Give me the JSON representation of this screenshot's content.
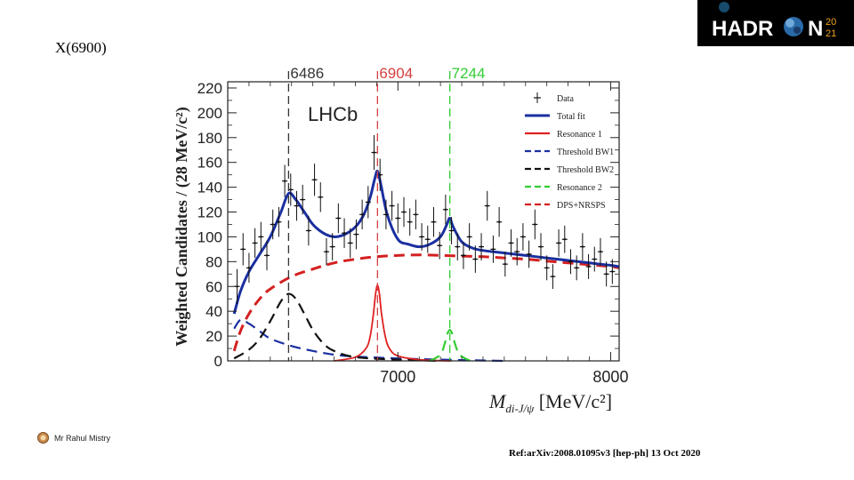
{
  "slide": {
    "title": "X(6900)",
    "author": "Mr Rahul Mistry",
    "reference": "Ref:arXiv:2008.01095v3 [hep-ph] 13 Oct 2020"
  },
  "logo": {
    "text_main": "HADR",
    "text_end": "N",
    "year_top": "20",
    "year_bottom": "21"
  },
  "colors": {
    "total_fit": "#1a2fa0",
    "resonance1": "#e02020",
    "threshold_bw1": "#1a2fa0",
    "threshold_bw2": "#111111",
    "resonance2": "#33cc33",
    "dps_nrsps": "#d42020",
    "marker_6486": "#333333",
    "marker_6904": "#d44040",
    "marker_7244": "#33cc33"
  },
  "chart_data": {
    "type": "line",
    "experiment_label": "LHCb",
    "xlabel_main": "M",
    "xlabel_sub": "di-J/ψ",
    "xlabel_units": " [MeV/c²]",
    "ylabel": "Weighted Candidates / (28 MeV/c²)",
    "xlim": [
      6200,
      8040
    ],
    "ylim": [
      0,
      225
    ],
    "xticks": [
      7000,
      8000
    ],
    "xtick_labels": [
      "7000",
      "8000"
    ],
    "yticks": [
      0,
      20,
      40,
      60,
      80,
      100,
      120,
      140,
      160,
      180,
      200,
      220
    ],
    "ytick_labels": [
      "0",
      "20",
      "40",
      "60",
      "80",
      "100",
      "120",
      "140",
      "160",
      "180",
      "200",
      "220"
    ],
    "markers": [
      {
        "mass": 6486,
        "label": "6486",
        "color_key": "marker_6486"
      },
      {
        "mass": 6904,
        "label": "6904",
        "color_key": "marker_6904"
      },
      {
        "mass": 7244,
        "label": "7244",
        "color_key": "marker_7244"
      }
    ],
    "legend": [
      {
        "label": "Data",
        "style": "data",
        "color_key": "threshold_bw2"
      },
      {
        "label": "Total fit",
        "style": "solid",
        "color_key": "total_fit"
      },
      {
        "label": "Resonance 1",
        "style": "solid-thin",
        "color_key": "resonance1"
      },
      {
        "label": "Threshold BW1",
        "style": "dashed",
        "color_key": "threshold_bw1"
      },
      {
        "label": "Threshold BW2",
        "style": "dashed",
        "color_key": "threshold_bw2"
      },
      {
        "label": "Resonance 2",
        "style": "dashed",
        "color_key": "resonance2"
      },
      {
        "label": "DPS+NRSPS",
        "style": "dashed",
        "color_key": "dps_nrsps"
      }
    ],
    "series": [
      {
        "name": "Total fit",
        "color_key": "total_fit",
        "style": "solid",
        "x": [
          6230,
          6260,
          6300,
          6350,
          6400,
          6450,
          6486,
          6520,
          6560,
          6600,
          6650,
          6700,
          6750,
          6800,
          6840,
          6870,
          6890,
          6904,
          6920,
          6950,
          7000,
          7050,
          7100,
          7150,
          7200,
          7230,
          7244,
          7260,
          7300,
          7350,
          7400,
          7500,
          7600,
          7700,
          7800,
          7900,
          8000,
          8040
        ],
        "y": [
          38,
          56,
          72,
          86,
          100,
          120,
          135,
          130,
          120,
          110,
          103,
          100,
          102,
          108,
          118,
          132,
          146,
          153,
          142,
          118,
          98,
          94,
          92,
          94,
          100,
          110,
          115,
          108,
          96,
          91,
          89,
          87,
          85,
          83,
          81,
          79,
          77,
          76
        ]
      },
      {
        "name": "Resonance 1",
        "color_key": "resonance1",
        "style": "solid-thin",
        "x": [
          6700,
          6800,
          6850,
          6870,
          6885,
          6895,
          6904,
          6913,
          6923,
          6940,
          6960,
          7000,
          7100,
          7250
        ],
        "y": [
          0,
          3,
          10,
          20,
          38,
          54,
          61,
          54,
          38,
          20,
          10,
          4,
          1,
          0
        ]
      },
      {
        "name": "Threshold BW1",
        "color_key": "threshold_bw1",
        "style": "dashed",
        "x": [
          6230,
          6260,
          6300,
          6350,
          6400,
          6500,
          6600,
          6700,
          6800,
          7000,
          7200,
          7500
        ],
        "y": [
          26,
          33,
          30,
          24,
          18,
          12,
          8,
          5,
          3.5,
          2,
          1,
          0
        ]
      },
      {
        "name": "Threshold BW2",
        "color_key": "threshold_bw2",
        "style": "dashed",
        "x": [
          6230,
          6300,
          6350,
          6400,
          6450,
          6486,
          6520,
          6560,
          6600,
          6650,
          6700,
          6800,
          7000,
          7200
        ],
        "y": [
          2,
          9,
          18,
          32,
          48,
          54,
          50,
          38,
          25,
          14,
          8,
          3,
          1,
          0
        ]
      },
      {
        "name": "Resonance 2",
        "color_key": "resonance2",
        "style": "dashed",
        "x": [
          7150,
          7200,
          7220,
          7233,
          7244,
          7255,
          7268,
          7290,
          7340
        ],
        "y": [
          0,
          5,
          14,
          22,
          25,
          22,
          14,
          5,
          0
        ]
      },
      {
        "name": "DPS+NRSPS",
        "color_key": "dps_nrsps",
        "style": "dashed",
        "x": [
          6230,
          6260,
          6300,
          6350,
          6400,
          6500,
          6600,
          6700,
          6800,
          6900,
          7000,
          7100,
          7200,
          7300,
          7400,
          7500,
          7600,
          7700,
          7800,
          7900,
          8000,
          8040
        ],
        "y": [
          8,
          24,
          38,
          50,
          58,
          68,
          74,
          79,
          82,
          84,
          85,
          85.5,
          85,
          84.5,
          84,
          83,
          82,
          80.5,
          79,
          77.5,
          76,
          75
        ]
      },
      {
        "name": "Data",
        "x": [
          6244,
          6272,
          6300,
          6328,
          6356,
          6384,
          6412,
          6440,
          6468,
          6496,
          6524,
          6552,
          6580,
          6608,
          6636,
          6664,
          6692,
          6720,
          6748,
          6776,
          6804,
          6832,
          6860,
          6888,
          6916,
          6944,
          6972,
          7000,
          7028,
          7056,
          7084,
          7112,
          7140,
          7168,
          7196,
          7224,
          7252,
          7280,
          7308,
          7336,
          7364,
          7392,
          7420,
          7448,
          7476,
          7504,
          7532,
          7560,
          7588,
          7616,
          7644,
          7672,
          7700,
          7728,
          7756,
          7784,
          7812,
          7840,
          7868,
          7896,
          7924,
          7952,
          7980,
          8008
        ],
        "y": [
          60,
          90,
          75,
          95,
          100,
          85,
          110,
          112,
          145,
          138,
          125,
          130,
          105,
          146,
          132,
          88,
          92,
          115,
          103,
          95,
          102,
          118,
          128,
          168,
          150,
          118,
          125,
          115,
          120,
          112,
          118,
          100,
          98,
          112,
          93,
          122,
          105,
          92,
          85,
          100,
          82,
          92,
          125,
          90,
          112,
          78,
          95,
          88,
          100,
          86,
          110,
          92,
          75,
          68,
          95,
          98,
          80,
          75,
          92,
          76,
          82,
          88,
          70,
          72
        ],
        "err": [
          14,
          13,
          12,
          12,
          12,
          12,
          12,
          12,
          13,
          13,
          12,
          12,
          12,
          13,
          12,
          11,
          11,
          12,
          12,
          12,
          12,
          12,
          13,
          14,
          13,
          12,
          12,
          12,
          12,
          11,
          12,
          11,
          11,
          12,
          11,
          12,
          11,
          11,
          11,
          11,
          11,
          11,
          12,
          11,
          12,
          10,
          11,
          11,
          11,
          11,
          12,
          11,
          10,
          10,
          11,
          11,
          10,
          10,
          11,
          10,
          10,
          11,
          10,
          10
        ]
      }
    ]
  }
}
